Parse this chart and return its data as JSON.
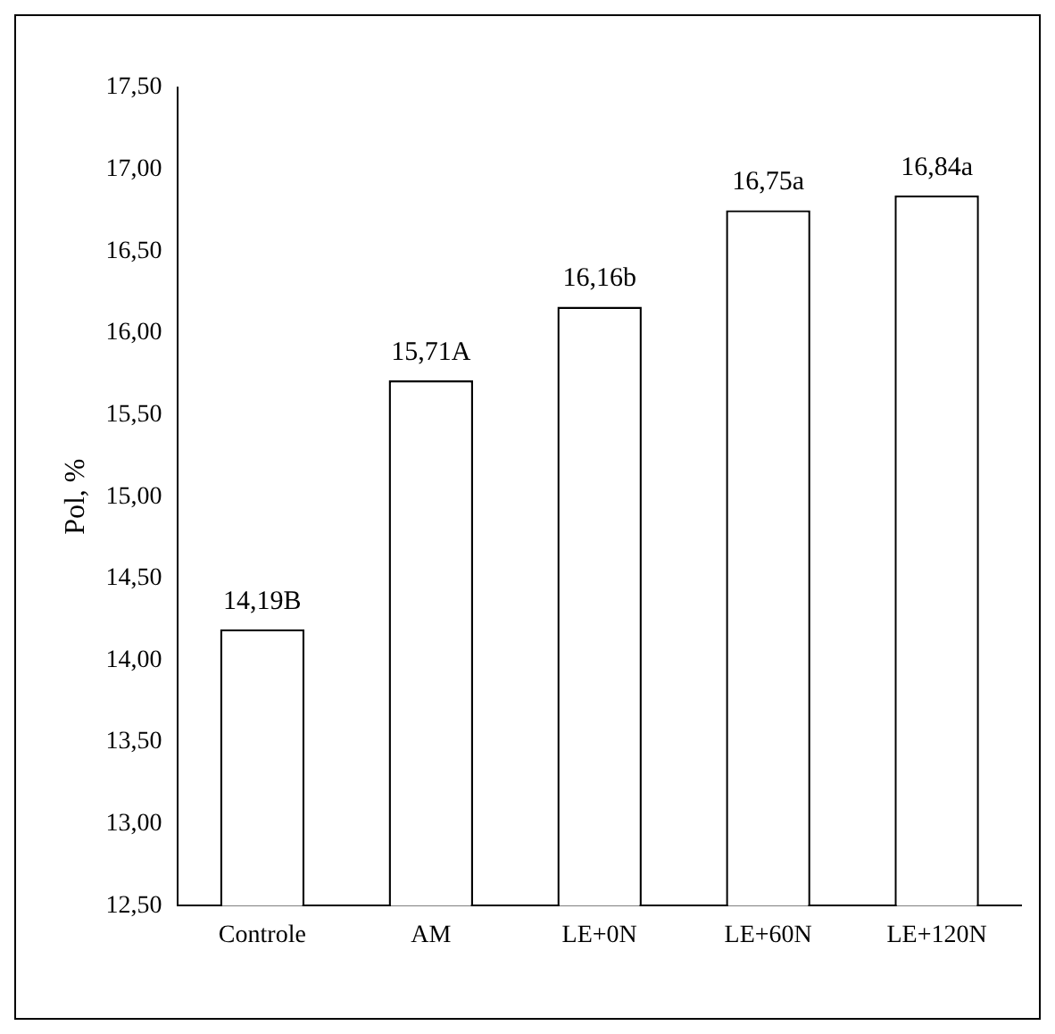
{
  "chart_data": {
    "type": "bar",
    "ylabel": "Pol, %",
    "categories": [
      "Controle",
      "AM",
      "LE+0N",
      "LE+60N",
      "LE+120N"
    ],
    "values": [
      14.19,
      15.71,
      16.16,
      16.75,
      16.84
    ],
    "value_labels": [
      "14,19B",
      "15,71A",
      "16,16b",
      "16,75a",
      "16,84a"
    ],
    "color": "#ffffff",
    "ylim": [
      12.5,
      17.5
    ],
    "yticks": [
      {
        "value": 12.5,
        "label": "12,50"
      },
      {
        "value": 13,
        "label": "13,00"
      },
      {
        "value": 13.5,
        "label": "13,50"
      },
      {
        "value": 14,
        "label": "14,00"
      },
      {
        "value": 14.5,
        "label": "14,50"
      },
      {
        "value": 15,
        "label": "15,00"
      },
      {
        "value": 15.5,
        "label": "15,50"
      },
      {
        "value": 16,
        "label": "16,00"
      },
      {
        "value": 16.5,
        "label": "16,50"
      },
      {
        "value": 17,
        "label": "17,00"
      },
      {
        "value": 17.5,
        "label": "17,50"
      }
    ],
    "grid": false,
    "legend": false
  }
}
